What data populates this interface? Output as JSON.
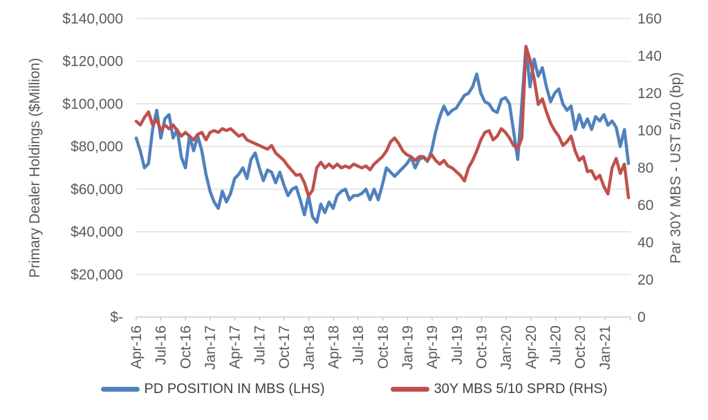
{
  "chart_data": {
    "type": "line",
    "title": "",
    "grid": "horizontal",
    "legend_position": "bottom",
    "grid_color": "#d9d9d9",
    "axis_color": "#bfbfbf",
    "text_color": "#595959",
    "x_tick_labels": [
      "Apr-16",
      "Jul-16",
      "Oct-16",
      "Jan-17",
      "Apr-17",
      "Jul-17",
      "Oct-17",
      "Jan-18",
      "Apr-18",
      "Jul-18",
      "Oct-18",
      "Jan-19",
      "Apr-19",
      "Jul-19",
      "Oct-19",
      "Jan-20",
      "Apr-20",
      "Jul-20",
      "Oct-20",
      "Jan-21"
    ],
    "left_axis": {
      "label": "Primary Dealer Holdings ($Million)",
      "tick_labels": [
        "$-",
        "$20,000",
        "$40,000",
        "$60,000",
        "$80,000",
        "$100,000",
        "$120,000",
        "$140,000"
      ],
      "min": 0,
      "max": 140000
    },
    "right_axis": {
      "label": "Par 30Y MBS - UST 5/10 (bp)",
      "tick_labels": [
        "0",
        "20",
        "40",
        "60",
        "80",
        "100",
        "120",
        "140",
        "160"
      ],
      "min": 0,
      "max": 160
    },
    "series": [
      {
        "name": "PD POSITION IN MBS (LHS)",
        "id": "pd-position-in-mbs",
        "axis": "left",
        "color": "#4f81bd",
        "x_start": "Apr-2016",
        "x_end": "Mar-2021",
        "values": [
          84000,
          78000,
          70000,
          72000,
          88000,
          97000,
          84000,
          93000,
          95000,
          84000,
          88000,
          75000,
          70000,
          85000,
          78000,
          85000,
          78000,
          67000,
          59000,
          54000,
          51000,
          59000,
          54000,
          58000,
          65000,
          67000,
          70000,
          65000,
          74000,
          77000,
          70000,
          64000,
          69000,
          68000,
          63000,
          68000,
          62000,
          57000,
          60000,
          61000,
          55000,
          48000,
          57000,
          47000,
          44500,
          53000,
          49000,
          54000,
          51000,
          57000,
          59000,
          60000,
          55000,
          57000,
          57000,
          58000,
          60000,
          55000,
          60000,
          55000,
          62000,
          70000,
          68000,
          66000,
          68000,
          70000,
          72000,
          75000,
          70000,
          74000,
          75000,
          73000,
          78000,
          87000,
          94000,
          99000,
          95000,
          97000,
          98000,
          101000,
          104000,
          105000,
          108000,
          114000,
          105000,
          101000,
          100000,
          97000,
          96000,
          102000,
          103000,
          100000,
          87000,
          74000,
          100000,
          127000,
          108000,
          121000,
          113000,
          117000,
          108000,
          101000,
          105000,
          107000,
          100000,
          97000,
          99000,
          88000,
          95000,
          89000,
          93000,
          88000,
          94000,
          92000,
          95000,
          90000,
          92000,
          89000,
          80000,
          88000,
          72000
        ]
      },
      {
        "name": "30Y MBS 5/10 SPRD (RHS)",
        "id": "mbs-spread",
        "axis": "right",
        "color": "#c0504d",
        "x_start": "Apr-2016",
        "x_end": "Mar-2021",
        "values": [
          105,
          103,
          107,
          110,
          103,
          106,
          100,
          103,
          101,
          103,
          100,
          97,
          99,
          97,
          95,
          98,
          99,
          95,
          99,
          100,
          99,
          101,
          100,
          101,
          99,
          97,
          98,
          95,
          94,
          93,
          92,
          91,
          90,
          92,
          88,
          86,
          84,
          81,
          78.5,
          76,
          76.5,
          72,
          65,
          68,
          80,
          83,
          80,
          82,
          80,
          82,
          80,
          81,
          80,
          82,
          81,
          80,
          81,
          79,
          82,
          84,
          86,
          89,
          94,
          96,
          93,
          89,
          87,
          86,
          84,
          86,
          86,
          84,
          87,
          84,
          82,
          84,
          81,
          80,
          78,
          76,
          73,
          80,
          84,
          89,
          95,
          99,
          100,
          95,
          97,
          101,
          99,
          96,
          92,
          90,
          96,
          145,
          138,
          128,
          114,
          117,
          110,
          104,
          100,
          97,
          92,
          94,
          97,
          89,
          84,
          86,
          78,
          78.5,
          74,
          76,
          70,
          66,
          80,
          85,
          77,
          82,
          64
        ]
      }
    ]
  }
}
